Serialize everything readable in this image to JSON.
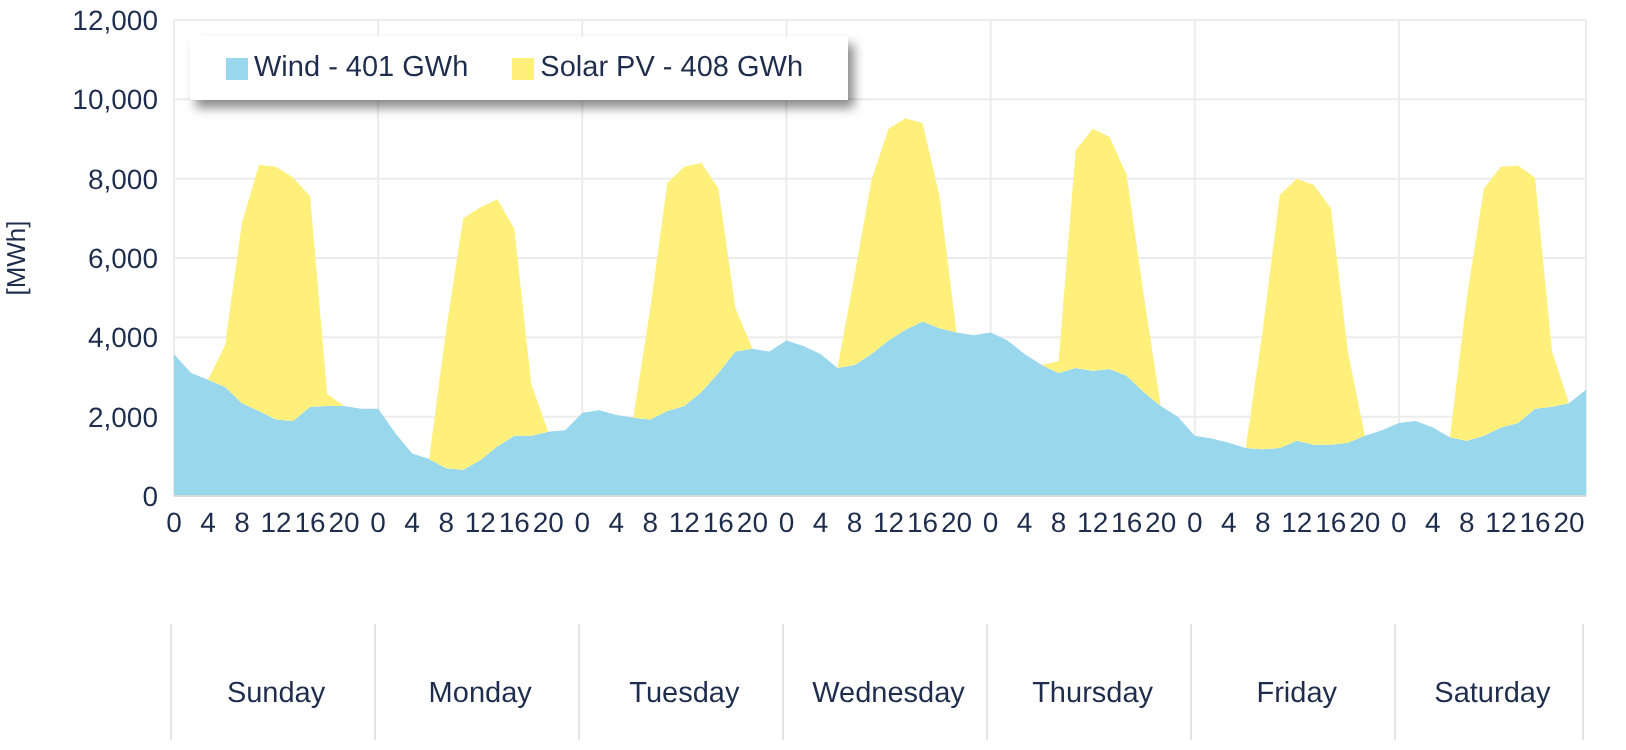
{
  "chart_data": {
    "type": "area",
    "stacked": true,
    "ylabel": "[MWh]",
    "categories": [
      "0",
      null,
      "4",
      null,
      "8",
      null,
      "12",
      null,
      "16",
      null,
      "20",
      null,
      "0",
      null,
      "4",
      null,
      "8",
      null,
      "12",
      null,
      "16",
      null,
      "20",
      null,
      "0",
      null,
      "4",
      null,
      "8",
      null,
      "12",
      null,
      "16",
      null,
      "20",
      null,
      "0",
      null,
      "4",
      null,
      "8",
      null,
      "12",
      null,
      "16",
      null,
      "20",
      null,
      "0",
      null,
      "4",
      null,
      "8",
      null,
      "12",
      null,
      "16",
      null,
      "20",
      null,
      "0",
      null,
      "4",
      null,
      "8",
      null,
      "12",
      null,
      "16",
      null,
      "20",
      null,
      "0",
      null,
      "4",
      null,
      "8",
      null,
      "12",
      null,
      "16",
      null,
      "20",
      null
    ],
    "series": [
      {
        "name": "Wind - 401 GWh",
        "color": "#99d7ec",
        "values": [
          3580,
          3100,
          2930,
          2750,
          2340,
          2140,
          1930,
          1890,
          2250,
          2270,
          2270,
          2200,
          2200,
          1590,
          1070,
          930,
          700,
          660,
          900,
          1250,
          1520,
          1520,
          1620,
          1660,
          2100,
          2160,
          2040,
          1970,
          1930,
          2140,
          2270,
          2620,
          3100,
          3640,
          3710,
          3640,
          3920,
          3780,
          3580,
          3230,
          3300,
          3580,
          3920,
          4190,
          4400,
          4230,
          4120,
          4050,
          4120,
          3920,
          3580,
          3300,
          3100,
          3230,
          3160,
          3200,
          3030,
          2620,
          2270,
          2000,
          1520,
          1450,
          1340,
          1210,
          1180,
          1210,
          1390,
          1290,
          1290,
          1340,
          1520,
          1660,
          1840,
          1890,
          1730,
          1480,
          1390,
          1520,
          1730,
          1840,
          2200,
          2250,
          2340,
          2680
        ]
      },
      {
        "name": "Solar PV - 408 GWh",
        "color": "#fef07a",
        "values": [
          0,
          0,
          0,
          1050,
          4560,
          6210,
          6370,
          6140,
          5300,
          300,
          0,
          0,
          0,
          0,
          0,
          0,
          3500,
          6340,
          6370,
          6230,
          5220,
          1300,
          0,
          0,
          0,
          0,
          0,
          0,
          2810,
          5750,
          6030,
          5780,
          4650,
          1100,
          0,
          0,
          0,
          0,
          0,
          0,
          2260,
          4380,
          5340,
          5330,
          5000,
          3330,
          0,
          0,
          0,
          0,
          0,
          0,
          300,
          5480,
          6100,
          5850,
          5060,
          2450,
          0,
          0,
          0,
          0,
          0,
          0,
          3010,
          6380,
          6610,
          6550,
          5970,
          2300,
          0,
          0,
          0,
          0,
          0,
          0,
          3620,
          6230,
          6570,
          6490,
          5830,
          1390,
          0,
          0
        ]
      }
    ],
    "ylim": [
      0,
      12000
    ],
    "yticks": [
      {
        "value": 0,
        "label": "0"
      },
      {
        "value": 2000,
        "label": "2,000"
      },
      {
        "value": 4000,
        "label": "4,000"
      },
      {
        "value": 6000,
        "label": "6,000"
      },
      {
        "value": 8000,
        "label": "8,000"
      },
      {
        "value": 10000,
        "label": "10,000"
      },
      {
        "value": 12000,
        "label": "12,000"
      }
    ],
    "grid": true,
    "legend": "top left",
    "annotations": [
      "Sunday",
      "Monday",
      "Tuesday",
      "Wednesday",
      "Thursday",
      "Friday",
      "Saturday"
    ]
  }
}
